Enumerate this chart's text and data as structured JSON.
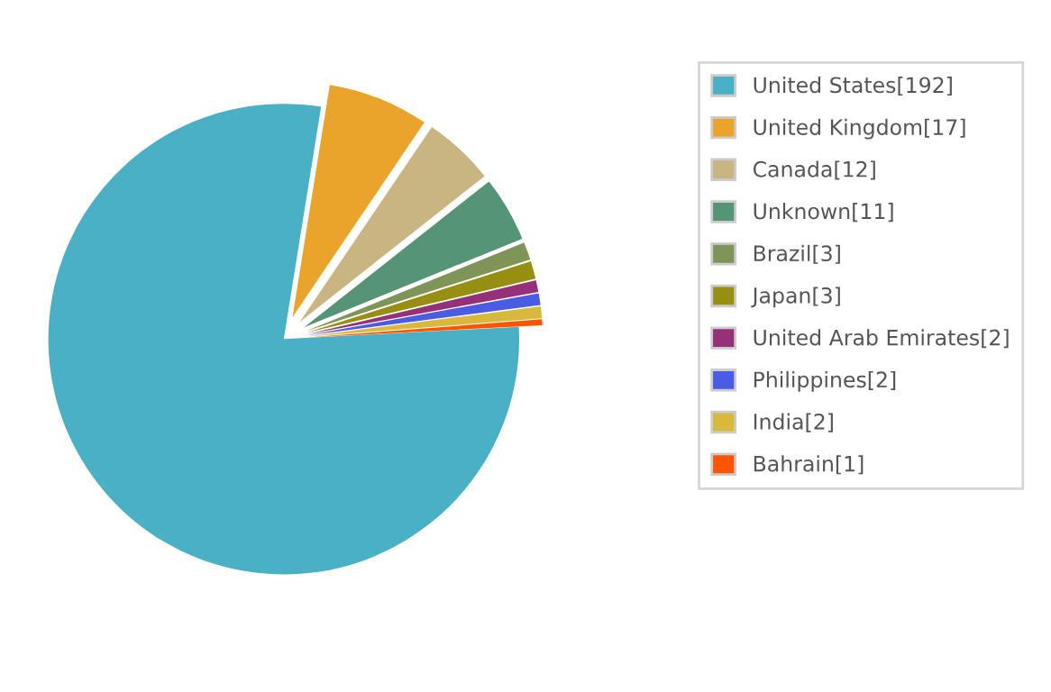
{
  "chart_data": {
    "type": "pie",
    "categories": [
      "United States[192]",
      "United Kingdom[17]",
      "Canada[12]",
      "Unknown[11]",
      "Brazil[3]",
      "Japan[3]",
      "United Arab Emirates[2]",
      "Philippines[2]",
      "India[2]",
      "Bahrain[1]"
    ],
    "values": [
      192,
      17,
      12,
      11,
      3,
      3,
      2,
      2,
      2,
      1
    ],
    "colors": [
      "#4ab0c6",
      "#eba42b",
      "#c8b581",
      "#559575",
      "#7f9457",
      "#978f12",
      "#963078",
      "#4a5be4",
      "#d8b93b",
      "#ff5500"
    ],
    "legend": "right"
  }
}
